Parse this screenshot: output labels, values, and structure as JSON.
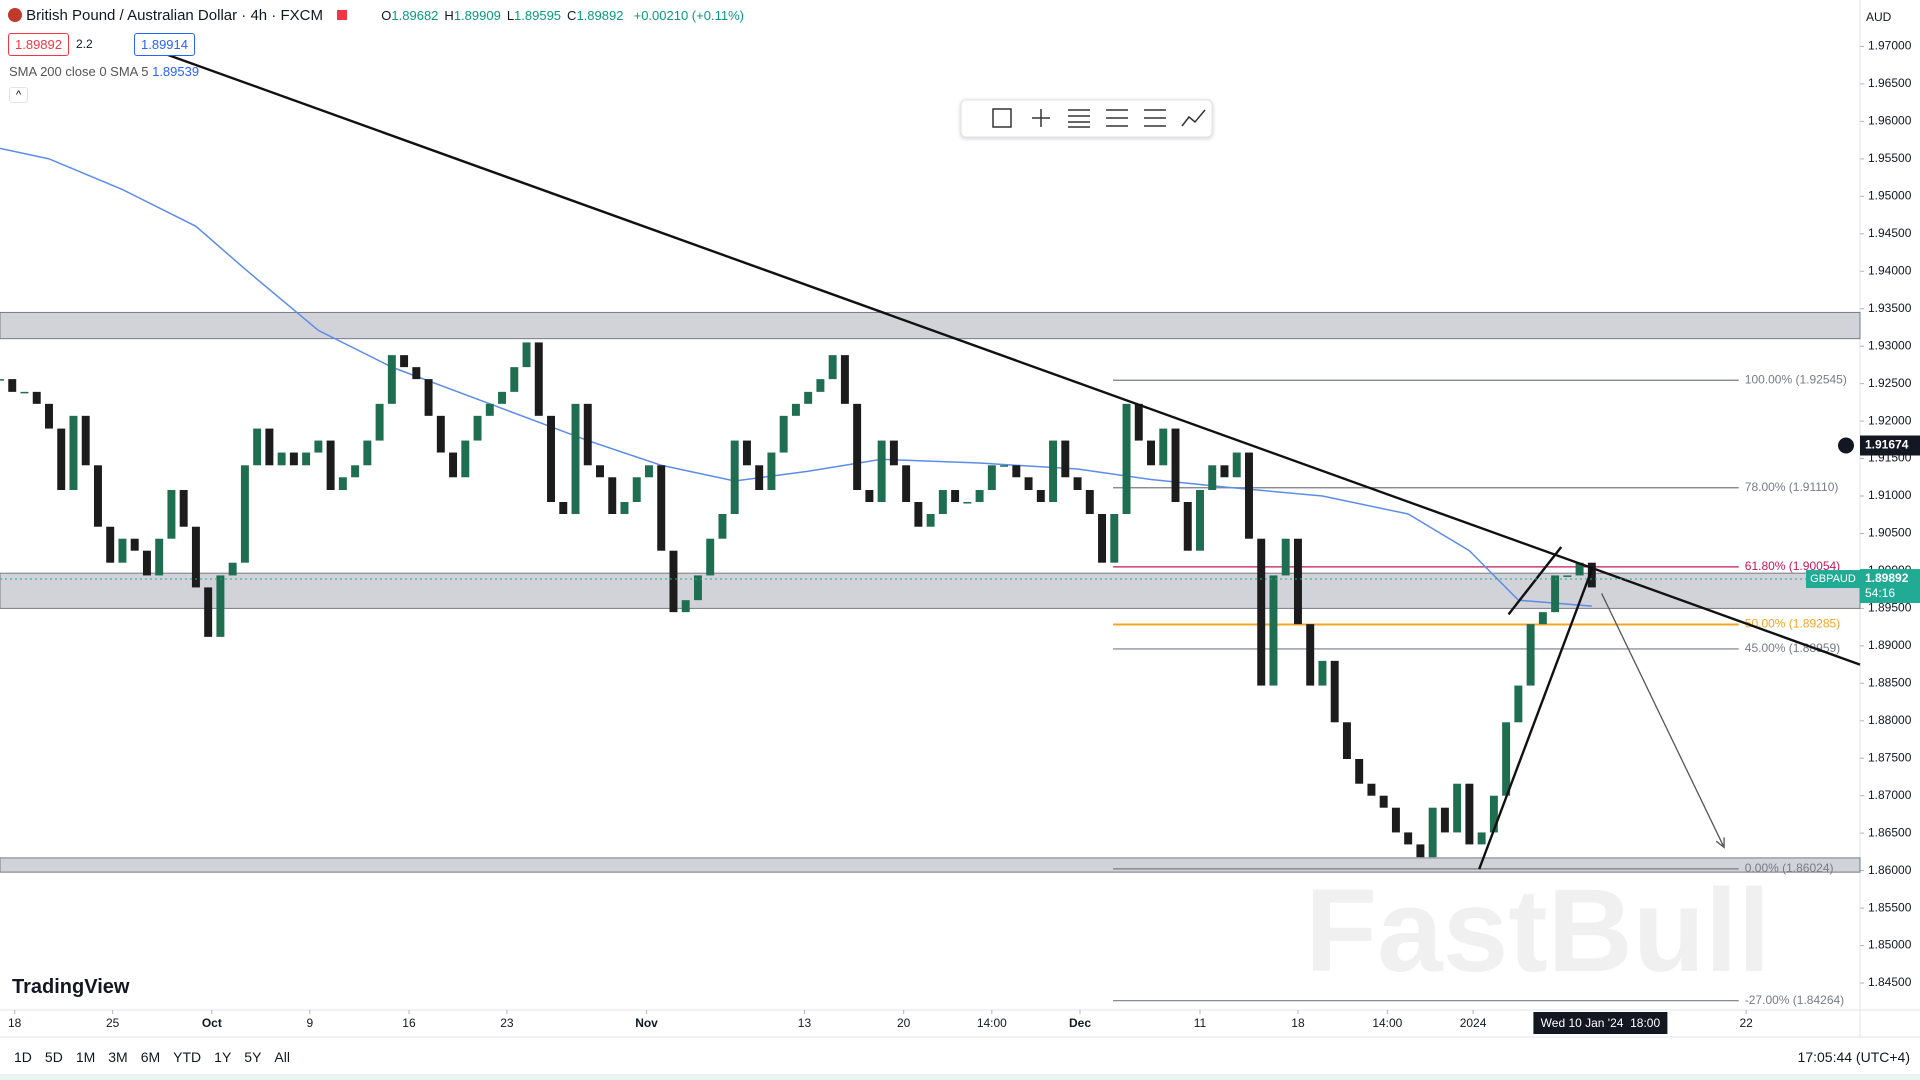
{
  "chart_data": {
    "type": "candlestick",
    "header": {
      "symbol": "British Pound / Australian Dollar · 4h · FXCM",
      "ohlc": [
        {
          "label": "O",
          "value": "1.89682"
        },
        {
          "label": "H",
          "value": "1.89909"
        },
        {
          "label": "L",
          "value": "1.89595"
        },
        {
          "label": "C",
          "value": "1.89892"
        }
      ],
      "change": "+0.00210 (+0.11%)",
      "bid": "1.89892",
      "spread": "2.2",
      "ask": "1.89914",
      "indicator": "SMA 200 close 0 SMA 5",
      "indicator_value": "1.89539"
    },
    "currency": "AUD",
    "logo": "TradingView",
    "watermark": "FastBull",
    "up_color": "#1f6e52",
    "down_color": "#1c1c1c",
    "xlim": [
      0,
      151.9
    ],
    "ylim": [
      1.8414,
      1.9762
    ],
    "xticks": [
      {
        "value": 1.2,
        "label": "18"
      },
      {
        "value": 9.2,
        "label": "25"
      },
      {
        "value": 17.3,
        "label": "Oct"
      },
      {
        "value": 25.3,
        "label": "9"
      },
      {
        "value": 33.4,
        "label": "16"
      },
      {
        "value": 41.4,
        "label": "23"
      },
      {
        "value": 52.8,
        "label": "Nov"
      },
      {
        "value": 65.7,
        "label": "13"
      },
      {
        "value": 73.8,
        "label": "20"
      },
      {
        "value": 81.0,
        "label": "14:00"
      },
      {
        "value": 88.2,
        "label": "Dec"
      },
      {
        "value": 98.0,
        "label": "11"
      },
      {
        "value": 106.0,
        "label": "18"
      },
      {
        "value": 113.3,
        "label": "14:00"
      },
      {
        "value": 120.3,
        "label": "2024"
      },
      {
        "value": 142.6,
        "label": "22"
      }
    ],
    "yticks": [
      {
        "value": 1.845,
        "label": "1.84500"
      },
      {
        "value": 1.85,
        "label": "1.85000"
      },
      {
        "value": 1.855,
        "label": "1.85500"
      },
      {
        "value": 1.86,
        "label": "1.86000"
      },
      {
        "value": 1.865,
        "label": "1.86500"
      },
      {
        "value": 1.87,
        "label": "1.87000"
      },
      {
        "value": 1.875,
        "label": "1.87500"
      },
      {
        "value": 1.88,
        "label": "1.88000"
      },
      {
        "value": 1.885,
        "label": "1.88500"
      },
      {
        "value": 1.89,
        "label": "1.89000"
      },
      {
        "value": 1.895,
        "label": "1.89500"
      },
      {
        "value": 1.9,
        "label": "1.90000"
      },
      {
        "value": 1.905,
        "label": "1.90500"
      },
      {
        "value": 1.91,
        "label": "1.91000"
      },
      {
        "value": 1.915,
        "label": "1.91500"
      },
      {
        "value": 1.92,
        "label": "1.92000"
      },
      {
        "value": 1.925,
        "label": "1.92500"
      },
      {
        "value": 1.93,
        "label": "1.93000"
      },
      {
        "value": 1.935,
        "label": "1.93500"
      },
      {
        "value": 1.94,
        "label": "1.94000"
      },
      {
        "value": 1.945,
        "label": "1.94500"
      },
      {
        "value": 1.95,
        "label": "1.95000"
      },
      {
        "value": 1.955,
        "label": "1.95500"
      },
      {
        "value": 1.96,
        "label": "1.96000"
      },
      {
        "value": 1.965,
        "label": "1.96500"
      },
      {
        "value": 1.97,
        "label": "1.97000"
      }
    ],
    "close": [
      1.9256,
      1.9239,
      1.9239,
      1.9223,
      1.919,
      1.9108,
      1.9207,
      1.9141,
      1.9059,
      1.9011,
      1.9043,
      1.9027,
      1.8994,
      1.9043,
      1.9108,
      1.9059,
      1.8978,
      1.8912,
      1.8994,
      1.9011,
      1.9141,
      1.919,
      1.9141,
      1.9158,
      1.9141,
      1.9158,
      1.9174,
      1.9108,
      1.9125,
      1.9141,
      1.9174,
      1.9223,
      1.9288,
      1.9272,
      1.9256,
      1.9207,
      1.9158,
      1.9125,
      1.9174,
      1.9207,
      1.9223,
      1.9239,
      1.9272,
      1.9305,
      1.9207,
      1.9092,
      1.9076,
      1.9223,
      1.9141,
      1.9125,
      1.9076,
      1.9092,
      1.9125,
      1.9141,
      1.9027,
      1.8945,
      1.8961,
      1.8994,
      1.9043,
      1.9076,
      1.9174,
      1.9141,
      1.9108,
      1.9158,
      1.9207,
      1.9223,
      1.9239,
      1.9256,
      1.9288,
      1.9223,
      1.9108,
      1.9092,
      1.9174,
      1.9141,
      1.9092,
      1.9059,
      1.9076,
      1.9108,
      1.9092,
      1.9092,
      1.9108,
      1.9141,
      1.9141,
      1.9125,
      1.9108,
      1.9092,
      1.9174,
      1.9125,
      1.9108,
      1.9076,
      1.9011,
      1.9076,
      1.9223,
      1.9174,
      1.9141,
      1.919,
      1.9092,
      1.9027,
      1.9108,
      1.9141,
      1.9125,
      1.9158,
      1.9043,
      1.8847,
      1.8994,
      1.9043,
      1.8929,
      1.8847,
      1.888,
      1.8798,
      1.8749,
      1.8716,
      1.87,
      1.8684,
      1.8651,
      1.8635,
      1.8618,
      1.8684,
      1.8651,
      1.8716,
      1.8635,
      1.8651,
      1.87,
      1.8798,
      1.8847,
      1.8929,
      1.8945,
      1.8994,
      1.8994,
      1.9011,
      1.8978
    ],
    "sma": {
      "color": "#5b8de8",
      "x": [
        0,
        4,
        10,
        16,
        20,
        26,
        32,
        40,
        48,
        54,
        60,
        66,
        72,
        80,
        88,
        94,
        100,
        108,
        115,
        120,
        124,
        130
      ],
      "values": [
        1.9564,
        1.955,
        1.9509,
        1.946,
        1.9403,
        1.9321,
        1.9272,
        1.9223,
        1.9174,
        1.9141,
        1.912,
        1.9133,
        1.9149,
        1.9144,
        1.9136,
        1.9122,
        1.9112,
        1.91,
        1.9076,
        1.9027,
        1.8961,
        1.8953
      ]
    },
    "zones": [
      [
        1.931,
        1.9345
      ],
      [
        1.895,
        1.8997
      ],
      [
        1.8598,
        1.8617
      ]
    ],
    "trendlines": [
      {
        "x": [
          13.5,
          151.9
        ],
        "y": [
          1.969,
          1.8875
        ]
      },
      {
        "x": [
          120.8,
          130.0
        ],
        "y": [
          1.8602,
          1.9002
        ]
      },
      {
        "x": [
          123.2,
          127.5
        ],
        "y": [
          1.8942,
          1.9032
        ]
      }
    ],
    "arrow": {
      "x": [
        130.8,
        140.8
      ],
      "y": [
        1.897,
        1.8631
      ]
    },
    "fib": {
      "x": [
        90.9,
        142.0
      ],
      "levels": [
        {
          "label": "100.00% (1.92545)",
          "value": 1.92545,
          "color": "#787b86"
        },
        {
          "label": "78.00% (1.91110)",
          "value": 1.9111,
          "color": "#787b86"
        },
        {
          "label": "61.80% (1.90054)",
          "value": 1.90054,
          "color": "#c2185b"
        },
        {
          "label": "50.00% (1.89285)",
          "value": 1.89285,
          "color": "#f5a623"
        },
        {
          "label": "45.00% (1.88959)",
          "value": 1.88959,
          "color": "#787b86"
        },
        {
          "label": "0.00% (1.86024)",
          "value": 1.86024,
          "color": "#787b86"
        },
        {
          "label": "-27.00% (1.84264)",
          "value": 1.84264,
          "color": "#787b86"
        }
      ]
    },
    "last_price": {
      "symbol": "GBPAUD",
      "value": 1.89892,
      "label": "1.89892",
      "countdown": "54:16",
      "color": "#22ab94"
    },
    "crosshair": {
      "price": 1.91674,
      "price_label": "1.91674",
      "x": 130.7,
      "time_label": "Wed 10 Jan '24  18:00"
    },
    "timeframes": [
      "1D",
      "5D",
      "1M",
      "3M",
      "6M",
      "YTD",
      "1Y",
      "5Y",
      "All"
    ],
    "clock": "17:05:44 (UTC+4)"
  }
}
